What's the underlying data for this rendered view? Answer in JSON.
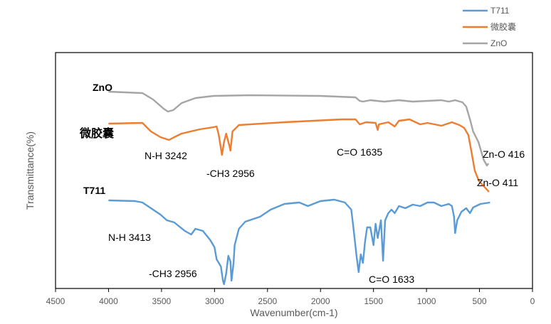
{
  "chart_data": {
    "type": "line",
    "title": "",
    "xlabel": "Wavenumber(cm-1)",
    "ylabel": "Transmittance(%)",
    "xlim": [
      4500,
      0
    ],
    "ylim": [
      0,
      332
    ],
    "x_reversed": true,
    "xticks": [
      4500,
      4000,
      3500,
      3000,
      2500,
      2000,
      1500,
      1000,
      500,
      0
    ],
    "grid": false,
    "legend": {
      "placement": "top-right",
      "entries": [
        "T711",
        "微胶囊",
        "ZnO"
      ]
    },
    "series": [
      {
        "name": "T711",
        "color": "#5B9BD5",
        "x": [
          4000,
          3750,
          3680,
          3610,
          3510,
          3450,
          3380,
          3280,
          3220,
          3180,
          3110,
          3040,
          3000,
          2980,
          2940,
          2920,
          2910,
          2890,
          2870,
          2850,
          2840,
          2820,
          2810,
          2770,
          2710,
          2570,
          2470,
          2340,
          2200,
          2120,
          2000,
          1870,
          1770,
          1710,
          1690,
          1660,
          1640,
          1620,
          1600,
          1580,
          1560,
          1530,
          1500,
          1480,
          1460,
          1430,
          1410,
          1390,
          1360,
          1330,
          1300,
          1260,
          1200,
          1130,
          1060,
          990,
          930,
          860,
          790,
          760,
          740,
          730,
          710,
          670,
          625,
          590,
          560,
          490,
          400
        ],
        "y": [
          124,
          123,
          121,
          114,
          104,
          96,
          93,
          81,
          76,
          84,
          81,
          68,
          58,
          41,
          31,
          11,
          6,
          21,
          46,
          38,
          11,
          36,
          61,
          84,
          94,
          101,
          111,
          119,
          121,
          116,
          123,
          125,
          121,
          111,
          86,
          46,
          23,
          48,
          36,
          66,
          86,
          86,
          61,
          91,
          71,
          96,
          39,
          96,
          106,
          111,
          106,
          116,
          113,
          118,
          116,
          121,
          121,
          116,
          119,
          116,
          101,
          78,
          96,
          108,
          113,
          106,
          114,
          119,
          121
        ]
      },
      {
        "name": "微胶囊",
        "color": "#ED7D31",
        "x": [
          4000,
          3680,
          3600,
          3510,
          3430,
          3380,
          3310,
          3140,
          3010,
          2980,
          2960,
          2930,
          2910,
          2890,
          2860,
          2850,
          2830,
          2770,
          2340,
          1800,
          1670,
          1630,
          1570,
          1480,
          1460,
          1450,
          1360,
          1300,
          1260,
          1160,
          1060,
          990,
          860,
          760,
          690,
          645,
          605,
          580,
          545,
          505,
          460,
          411
        ],
        "y": [
          232,
          233,
          221,
          213,
          209,
          213,
          218,
          224,
          227,
          228,
          216,
          188,
          206,
          218,
          201,
          194,
          221,
          230,
          234,
          238,
          238,
          231,
          234,
          233,
          223,
          231,
          234,
          228,
          236,
          238,
          231,
          233,
          229,
          234,
          230,
          226,
          216,
          196,
          166,
          151,
          144,
          136
        ]
      },
      {
        "name": "ZnO",
        "color": "#A5A5A5",
        "x": [
          4000,
          3680,
          3580,
          3480,
          3440,
          3390,
          3310,
          3180,
          3010,
          2670,
          2000,
          1670,
          1630,
          1600,
          1530,
          1400,
          1260,
          1130,
          990,
          860,
          790,
          730,
          660,
          625,
          590,
          560,
          510,
          460,
          430,
          416
        ],
        "y": [
          277,
          275,
          266,
          253,
          249,
          251,
          261,
          268,
          271,
          272,
          271,
          269,
          264,
          263,
          265,
          263,
          265,
          263,
          264,
          265,
          263,
          265,
          262,
          256,
          238,
          221,
          206,
          181,
          173,
          176
        ]
      }
    ],
    "annotations": {
      "znO_label": "ZnO",
      "micro_label": "微胶囊",
      "t711_label": "T711",
      "nh_3242": "N-H 3242",
      "ch3_2956_micro": "-CH3 2956",
      "co_1635": "C=O 1635",
      "zno_416": "Zn-O 416",
      "zno_411": "Zn-O 411",
      "nh_3413": "N-H 3413",
      "ch3_2956_t711": "-CH3 2956",
      "co_1633": "C=O 1633"
    }
  }
}
